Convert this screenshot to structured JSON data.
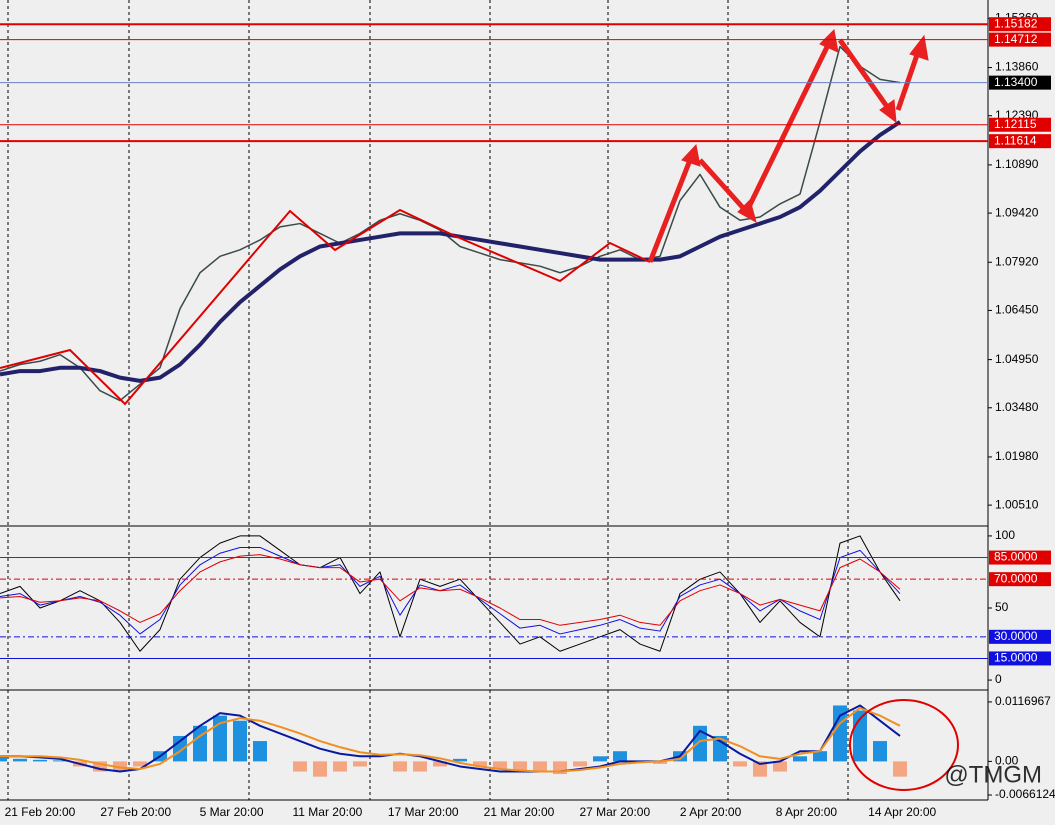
{
  "chart_data": [
    {
      "type": "line",
      "ylim": [
        0.99934,
        1.1586
      ],
      "yticks": [
        {
          "value": 1.1536,
          "label": "1.15360"
        },
        {
          "value": 1.1386,
          "label": "1.13860"
        },
        {
          "value": 1.1239,
          "label": "1.12390"
        },
        {
          "value": 1.1089,
          "label": "1.10890"
        },
        {
          "value": 1.0942,
          "label": "1.09420"
        },
        {
          "value": 1.0792,
          "label": "1.07920"
        },
        {
          "value": 1.0645,
          "label": "1.06450"
        },
        {
          "value": 1.0495,
          "label": "1.04950"
        },
        {
          "value": 1.0348,
          "label": "1.03480"
        },
        {
          "value": 1.0198,
          "label": "1.01980"
        },
        {
          "value": 1.0051,
          "label": "1.00510"
        }
      ],
      "series": [
        {
          "color": "#3c4a4a",
          "width": 1.5,
          "values": [
            1.046,
            1.048,
            1.049,
            1.051,
            1.047,
            1.04,
            1.037,
            1.042,
            1.047,
            1.065,
            1.076,
            1.081,
            1.083,
            1.086,
            1.09,
            1.091,
            1.088,
            1.085,
            1.088,
            1.092,
            1.094,
            1.092,
            1.089,
            1.084,
            1.082,
            1.08,
            1.079,
            1.078,
            1.076,
            1.078,
            1.081,
            1.083,
            1.08,
            1.081,
            1.098,
            1.106,
            1.096,
            1.092,
            1.093,
            1.097,
            1.1,
            1.122,
            1.145,
            1.139,
            1.135,
            1.134
          ]
        },
        {
          "color": "#22226a",
          "width": 4,
          "values": [
            1.045,
            1.046,
            1.046,
            1.047,
            1.047,
            1.046,
            1.044,
            1.043,
            1.044,
            1.048,
            1.054,
            1.061,
            1.067,
            1.072,
            1.077,
            1.081,
            1.084,
            1.085,
            1.086,
            1.087,
            1.088,
            1.088,
            1.088,
            1.087,
            1.086,
            1.085,
            1.084,
            1.083,
            1.082,
            1.081,
            1.08,
            1.08,
            1.08,
            1.08,
            1.081,
            1.084,
            1.087,
            1.089,
            1.091,
            1.093,
            1.096,
            1.101,
            1.107,
            1.113,
            1.118,
            1.122
          ]
        }
      ],
      "levels": [
        {
          "value": 1.15182,
          "label": "1.15182",
          "color": "#e00000",
          "box": "#e00000",
          "width": 2,
          "style": "solid"
        },
        {
          "value": 1.14712,
          "label": "1.14712",
          "color": "#e00000",
          "box": "#e00000",
          "width": 1,
          "style": "solid"
        },
        {
          "value": 1.134,
          "label": "1.13400",
          "color": "#6a80c8",
          "box": "#000000",
          "width": 1,
          "style": "solid"
        },
        {
          "value": 1.12115,
          "label": "1.12115",
          "color": "#e00000",
          "box": "#e00000",
          "width": 1,
          "style": "solid"
        },
        {
          "value": 1.11614,
          "label": "1.11614",
          "color": "#e00000",
          "box": "#e00000",
          "width": 2,
          "style": "solid"
        }
      ]
    },
    {
      "type": "line",
      "ylim": [
        -5.5,
        105.5
      ],
      "yticks": [
        100,
        50,
        0
      ],
      "series": [
        {
          "color": "#000000",
          "width": 1,
          "values": [
            60,
            65,
            50,
            55,
            62,
            55,
            40,
            20,
            35,
            70,
            85,
            95,
            100,
            100,
            90,
            80,
            78,
            85,
            60,
            75,
            30,
            70,
            65,
            70,
            55,
            40,
            25,
            30,
            20,
            25,
            30,
            35,
            25,
            20,
            60,
            70,
            75,
            60,
            40,
            55,
            40,
            30,
            95,
            100,
            75,
            55
          ]
        },
        {
          "color": "#1010e0",
          "width": 1,
          "values": [
            58,
            60,
            52,
            55,
            58,
            54,
            45,
            32,
            42,
            66,
            80,
            88,
            92,
            92,
            86,
            80,
            78,
            80,
            65,
            72,
            45,
            66,
            62,
            66,
            56,
            46,
            36,
            38,
            32,
            35,
            38,
            42,
            36,
            34,
            58,
            66,
            70,
            60,
            48,
            56,
            48,
            42,
            85,
            90,
            75,
            60
          ]
        },
        {
          "color": "#e00000",
          "width": 1,
          "values": [
            57,
            58,
            54,
            55,
            57,
            55,
            48,
            40,
            46,
            62,
            75,
            82,
            86,
            87,
            84,
            80,
            78,
            78,
            68,
            70,
            55,
            64,
            62,
            63,
            57,
            50,
            42,
            42,
            38,
            40,
            42,
            45,
            40,
            38,
            55,
            62,
            66,
            60,
            52,
            56,
            52,
            48,
            78,
            84,
            75,
            63
          ]
        }
      ],
      "levels": [
        {
          "value": 85,
          "label": "85.0000",
          "color": "#e00000",
          "box": "#e00000",
          "width": 1,
          "style": "solid"
        },
        {
          "value": 70,
          "label": "70.0000",
          "color": "#e00000",
          "box": "#e00000",
          "width": 1,
          "style": "dashed"
        },
        {
          "value": 30,
          "label": "30.0000",
          "color": "#1010e0",
          "box": "#1010e0",
          "width": 1,
          "style": "dashed"
        },
        {
          "value": 15,
          "label": "15.0000",
          "color": "#1010e0",
          "box": "#1010e0",
          "width": 1,
          "style": "solid"
        }
      ]
    },
    {
      "type": "macd",
      "ylim": [
        -0.0074,
        0.01365
      ],
      "yticks": [
        0.0116967,
        {
          "value": 0,
          "label": "0.00"
        },
        -0.0066124
      ],
      "pos_color": "#1e90e0",
      "neg_color": "#f4a582",
      "histogram": [
        0.001,
        0.0005,
        0.0003,
        0.0002,
        -0.001,
        -0.002,
        -0.002,
        -0.001,
        0.002,
        0.005,
        0.007,
        0.009,
        0.008,
        0.004,
        0,
        -0.002,
        -0.003,
        -0.002,
        -0.001,
        0,
        -0.002,
        -0.002,
        -0.001,
        0.0005,
        -0.001,
        -0.0015,
        -0.002,
        -0.002,
        -0.0025,
        -0.001,
        0.001,
        0.002,
        0,
        -0.0005,
        0.002,
        0.007,
        0.005,
        -0.001,
        -0.003,
        -0.002,
        0.001,
        0.002,
        0.011,
        0.01,
        0.004,
        -0.003
      ],
      "series": [
        {
          "color": "#0a1aa0",
          "width": 2,
          "values": [
            0.001,
            0.001,
            0.0008,
            0.0005,
            -0.0005,
            -0.0015,
            -0.002,
            -0.0015,
            0.001,
            0.004,
            0.007,
            0.0095,
            0.009,
            0.007,
            0.0055,
            0.004,
            0.0025,
            0.0015,
            0.001,
            0.001,
            0.0015,
            0.001,
            0,
            -0.001,
            -0.0015,
            -0.002,
            -0.002,
            -0.002,
            -0.002,
            -0.0015,
            -0.001,
            0,
            0,
            0,
            0.001,
            0.006,
            0.004,
            0.0015,
            -0.0005,
            0,
            0.002,
            0.002,
            0.009,
            0.011,
            0.008,
            0.005
          ]
        },
        {
          "color": "#f09020",
          "width": 2,
          "values": [
            0.001,
            0.001,
            0.001,
            0.0008,
            0.0003,
            -0.0005,
            -0.0012,
            -0.0015,
            -0.0005,
            0.002,
            0.005,
            0.0075,
            0.0085,
            0.008,
            0.0068,
            0.0055,
            0.004,
            0.0028,
            0.0018,
            0.0013,
            0.0014,
            0.0012,
            0.0006,
            -0.0003,
            -0.001,
            -0.0015,
            -0.0018,
            -0.002,
            -0.002,
            -0.0017,
            -0.0012,
            -0.0005,
            -0.0002,
            0,
            0.0005,
            0.004,
            0.0045,
            0.003,
            0.001,
            0.0005,
            0.0015,
            0.002,
            0.0075,
            0.0105,
            0.009,
            0.007
          ]
        }
      ],
      "x_labels": [
        "21 Feb 20:00",
        "27 Feb 20:00",
        "5 Mar 20:00",
        "11 Mar 20:00",
        "17 Mar 20:00",
        "21 Mar 20:00",
        "27 Mar 20:00",
        "2 Apr 20:00",
        "8 Apr 20:00",
        "14 Apr 20:00"
      ],
      "watermark": "@TMGM"
    }
  ]
}
